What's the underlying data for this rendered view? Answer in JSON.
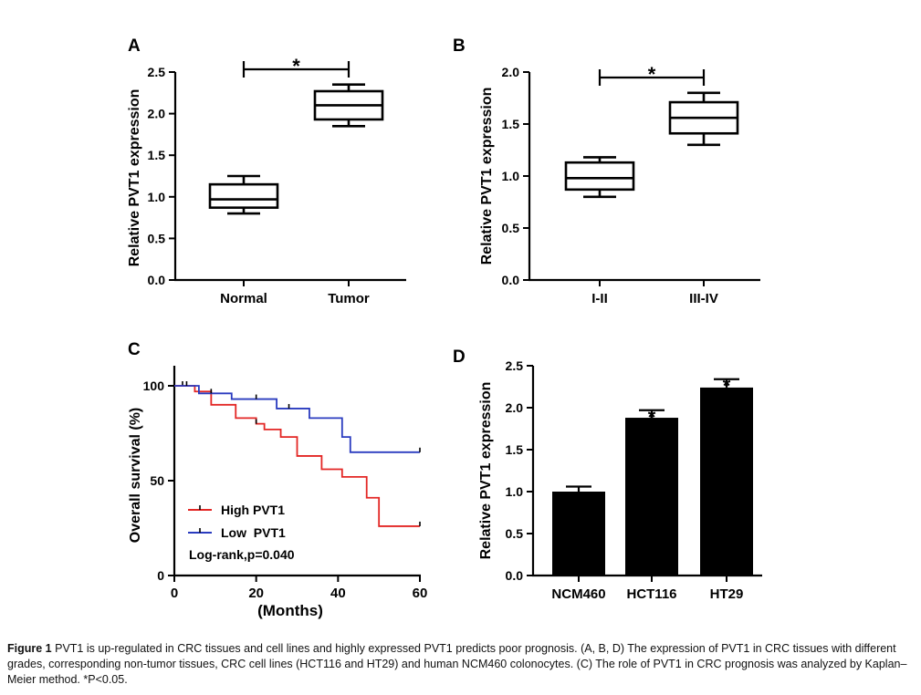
{
  "caption": {
    "figure_label": "Figure 1",
    "text": "PVT1 is up-regulated in CRC tissues and cell lines and highly expressed PVT1 predicts poor prognosis. (A, B, D) The expression of PVT1 in CRC tissues with different grades, corresponding non-tumor tissues, CRC cell lines (HCT116 and HT29) and human NCM460 colonocytes. (C) The role of PVT1 in CRC prognosis was analyzed by Kaplan–Meier method. *P<0.05."
  },
  "chart_data": [
    {
      "panel": "A",
      "type": "box",
      "ylabel": "Relative PVT1 expression",
      "ylim": [
        0,
        2.5
      ],
      "yticks": [
        "0.0",
        "0.5",
        "1.0",
        "1.5",
        "2.0",
        "2.5"
      ],
      "categories": [
        "Normal",
        "Tumor"
      ],
      "boxes": [
        {
          "min": 0.8,
          "q1": 0.87,
          "median": 0.97,
          "q3": 1.15,
          "max": 1.25
        },
        {
          "min": 1.85,
          "q1": 1.93,
          "median": 2.1,
          "q3": 2.27,
          "max": 2.35
        }
      ],
      "significance": {
        "between": [
          0,
          1
        ],
        "label": "*"
      }
    },
    {
      "panel": "B",
      "type": "box",
      "ylabel": "Relative PVT1 expression",
      "ylim": [
        0,
        2.0
      ],
      "yticks": [
        "0.0",
        "0.5",
        "1.0",
        "1.5",
        "2.0"
      ],
      "categories": [
        "I-II",
        "III-IV"
      ],
      "boxes": [
        {
          "min": 0.8,
          "q1": 0.87,
          "median": 0.98,
          "q3": 1.13,
          "max": 1.18
        },
        {
          "min": 1.3,
          "q1": 1.41,
          "median": 1.56,
          "q3": 1.71,
          "max": 1.8
        }
      ],
      "significance": {
        "between": [
          0,
          1
        ],
        "label": "*"
      }
    },
    {
      "panel": "C",
      "type": "line",
      "subtype": "kaplan-meier",
      "xlabel": "(Months)",
      "ylabel": "Overall survival (%)",
      "xlim": [
        0,
        60
      ],
      "ylim": [
        0,
        100
      ],
      "xticks": [
        "0",
        "20",
        "40",
        "60"
      ],
      "yticks": [
        "0",
        "50",
        "100"
      ],
      "annotation": "Log-rank,p=0.040",
      "legend_position": "bottom-left",
      "series": [
        {
          "name": "High PVT1",
          "color": "#e32624",
          "steps": [
            [
              0,
              100
            ],
            [
              5,
              97
            ],
            [
              9,
              90
            ],
            [
              15,
              83
            ],
            [
              20,
              80
            ],
            [
              22,
              77
            ],
            [
              26,
              73
            ],
            [
              30,
              63
            ],
            [
              36,
              56
            ],
            [
              41,
              52
            ],
            [
              47,
              41
            ],
            [
              50,
              26
            ],
            [
              60,
              26
            ]
          ],
          "censored": [
            [
              2,
              100
            ],
            [
              20,
              80
            ],
            [
              60,
              26
            ]
          ]
        },
        {
          "name": "Low  PVT1",
          "color": "#2a3bbf",
          "steps": [
            [
              0,
              100
            ],
            [
              6,
              96
            ],
            [
              14,
              93
            ],
            [
              25,
              88
            ],
            [
              33,
              83
            ],
            [
              41,
              73
            ],
            [
              43,
              65
            ],
            [
              60,
              65
            ]
          ],
          "censored": [
            [
              3,
              100
            ],
            [
              9,
              96
            ],
            [
              20,
              93
            ],
            [
              28,
              88
            ],
            [
              60,
              65
            ]
          ]
        }
      ]
    },
    {
      "panel": "D",
      "type": "bar",
      "ylabel": "Relative PVT1 expression",
      "ylim": [
        0,
        2.5
      ],
      "yticks": [
        "0.0",
        "0.5",
        "1.0",
        "1.5",
        "2.0",
        "2.5"
      ],
      "categories": [
        "NCM460",
        "HCT116",
        "HT29"
      ],
      "values": [
        1.0,
        1.88,
        2.24
      ],
      "errors": [
        0.06,
        0.09,
        0.1
      ],
      "significance_labels": [
        "",
        "*",
        "*"
      ],
      "bar_color": "#000000"
    }
  ]
}
